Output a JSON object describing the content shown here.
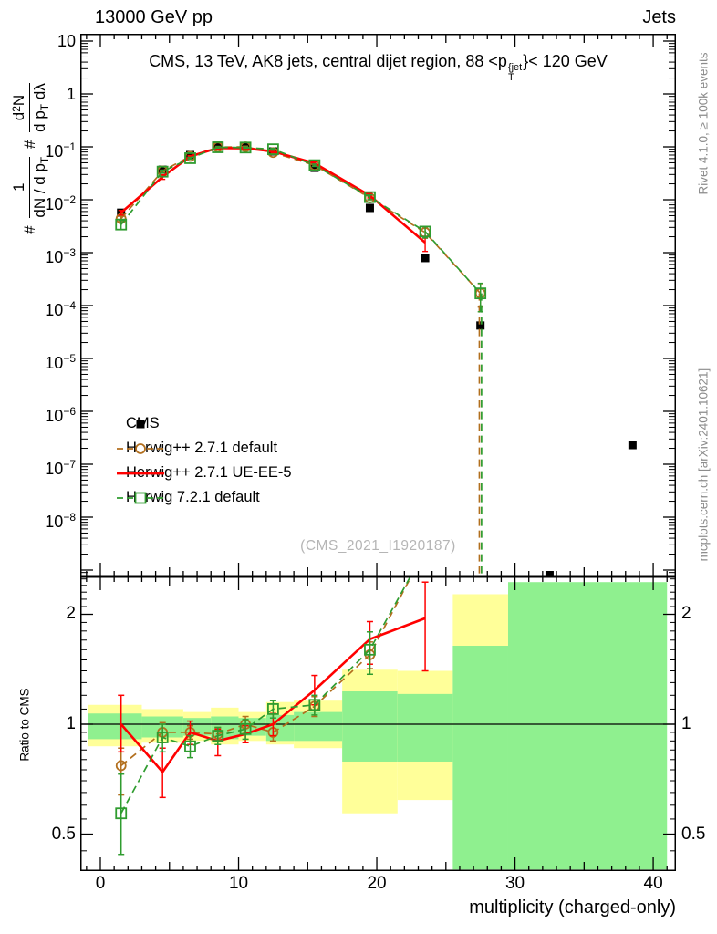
{
  "header": {
    "left": "13000 GeV pp",
    "right": "Jets"
  },
  "title_parts": [
    {
      "t": "CMS, 13 TeV, AK8 jets, central dijet region, 88 <p"
    },
    {
      "sup": "{jet",
      "sub": "T"
    },
    {
      "t": "}< 120 GeV"
    }
  ],
  "watermark": "(CMS_2021_I1920187)",
  "side_top": "Rivet 4.1.0, ≥ 100k events",
  "side_bottom": "mcplots.cern.ch [arXiv:2401.10621]",
  "ratio_ylabel": "Ratio to CMS",
  "ylabel_main": {
    "segments": [
      {
        "t": "# "
      },
      {
        "frac": {
          "num": [
            {
              "t": "1"
            }
          ],
          "den": [
            {
              "t": "dN / d p"
            },
            {
              "sub": "T"
            }
          ]
        }
      },
      {
        "t": " # "
      },
      {
        "frac": {
          "num": [
            {
              "t": "d"
            },
            {
              "sup": "2"
            },
            {
              "t": "N"
            }
          ],
          "den": [
            {
              "t": "d p"
            },
            {
              "sub": "T"
            },
            {
              "t": " dλ"
            }
          ]
        }
      }
    ]
  },
  "colors": {
    "cms": "#000000",
    "herwigpp_default": "#b26f1e",
    "herwigpp_ueee5": "#ff0000",
    "herwig7": "#2f9c2f",
    "band_yellow": "#ffff99",
    "band_green": "#8ff08f",
    "gray_text": "#8c8c8c"
  },
  "chart_data": {
    "type": "line",
    "title": "CMS, 13 TeV, AK8 jets, central dijet region, 88 < pT^jet < 120 GeV",
    "xlabel": "multiplicity (charged-only)",
    "ylabel": "# 1/(dN/dpT) # d2N/(dpT dLambda)",
    "ratio_ylabel": "Ratio to CMS",
    "xlim": [
      -1.45,
      41.65
    ],
    "ylim_main_log": [
      7.6e-10,
      13.7
    ],
    "ylim_ratio_log": [
      0.396,
      2.54
    ],
    "x_ticks": [
      0,
      10,
      20,
      30,
      40
    ],
    "y_ticks_main": [
      {
        "v": 10,
        "base": "10"
      },
      {
        "v": 1,
        "base": "1"
      },
      {
        "v": 0.1,
        "base": "10",
        "exp": "−1"
      },
      {
        "v": 0.01,
        "base": "10",
        "exp": "−2"
      },
      {
        "v": 0.001,
        "base": "10",
        "exp": "−3"
      },
      {
        "v": 0.0001,
        "base": "10",
        "exp": "−4"
      },
      {
        "v": 1e-05,
        "base": "10",
        "exp": "−5"
      },
      {
        "v": 1e-06,
        "base": "10",
        "exp": "−6"
      },
      {
        "v": 1e-07,
        "base": "10",
        "exp": "−7"
      },
      {
        "v": 1e-08,
        "base": "10",
        "exp": "−8"
      }
    ],
    "y_ticks_ratio": [
      {
        "v": 2,
        "t": "2"
      },
      {
        "v": 1,
        "t": "1"
      },
      {
        "v": 0.5,
        "t": "0.5"
      }
    ],
    "series": [
      {
        "name": "CMS",
        "role": "data",
        "color": "#000000",
        "line": "none",
        "marker": "filled-square",
        "x": [
          1.5,
          4.5,
          6.5,
          8.5,
          10.5,
          12.5,
          15.5,
          19.5,
          23.5,
          27.5,
          38.5
        ],
        "y": [
          0.0057,
          0.037,
          0.07,
          0.105,
          0.1,
          0.082,
          0.04,
          0.007,
          0.00079,
          4.2e-05,
          2.3e-07
        ],
        "clipped_points": [
          {
            "x": 32.5,
            "note": "below y-axis range, marker clipped at axis"
          }
        ]
      },
      {
        "name": "Herwig++ 2.7.1 default",
        "role": "mc",
        "color": "#b26f1e",
        "line": "dashed",
        "marker": "open-circle",
        "x": [
          1.5,
          4.5,
          6.5,
          8.5,
          10.5,
          12.5,
          15.5,
          19.5,
          23.5,
          27.5
        ],
        "y": [
          0.0044,
          0.035,
          0.066,
          0.099,
          0.1,
          0.078,
          0.045,
          0.0108,
          0.0024,
          0.00017
        ],
        "yerr_rel": [
          0.12,
          0.04,
          0.03,
          0.03,
          0.03,
          0.03,
          0.05,
          0.08,
          0.22,
          0.45
        ],
        "drop_to_zero_after": 27.5,
        "drop_offset": -1.2,
        "ratio": [
          0.77,
          0.95,
          0.95,
          0.94,
          1.0,
          0.95,
          1.12,
          1.55,
          3.0,
          4.0
        ],
        "ratio_lo": [
          0.64,
          0.89,
          0.91,
          0.9,
          0.95,
          0.9,
          1.05,
          1.42,
          null,
          null
        ],
        "ratio_hi": [
          0.86,
          1.01,
          0.99,
          0.98,
          1.05,
          1.0,
          1.19,
          1.68,
          null,
          null
        ]
      },
      {
        "name": "Herwig++ 2.7.1 UE-EE-5",
        "role": "mc",
        "color": "#ff0000",
        "line": "solid",
        "marker": "none",
        "x": [
          1.5,
          4.5,
          6.5,
          8.5,
          10.5,
          12.5,
          15.5,
          19.5,
          23.5
        ],
        "y": [
          0.0057,
          0.027,
          0.066,
          0.095,
          0.094,
          0.082,
          0.049,
          0.012,
          0.00155
        ],
        "yerr_rel": [
          0.1,
          0.1,
          0.04,
          0.04,
          0.04,
          0.05,
          0.06,
          0.1,
          0.32
        ],
        "ratio": [
          1.0,
          0.74,
          0.95,
          0.9,
          0.94,
          1.0,
          1.24,
          1.71,
          1.95
        ],
        "ratio_lo": [
          0.84,
          0.63,
          0.88,
          0.82,
          0.89,
          0.93,
          1.13,
          1.46,
          1.4
        ],
        "ratio_hi": [
          1.2,
          0.86,
          1.02,
          0.97,
          0.99,
          1.07,
          1.36,
          1.91,
          2.45
        ]
      },
      {
        "name": "Herwig 7.2.1 default",
        "role": "mc",
        "color": "#2f9c2f",
        "line": "dashed",
        "marker": "open-square",
        "x": [
          1.5,
          4.5,
          6.5,
          8.5,
          10.5,
          12.5,
          15.5,
          19.5,
          23.5,
          27.5
        ],
        "y": [
          0.0034,
          0.034,
          0.061,
          0.098,
          0.097,
          0.09,
          0.045,
          0.0112,
          0.0025,
          0.00017
        ],
        "yerr_rel": [
          0.2,
          0.06,
          0.04,
          0.03,
          0.03,
          0.04,
          0.05,
          0.1,
          0.24,
          0.55
        ],
        "drop_to_zero_after": 27.5,
        "drop_offset": 1.2,
        "ratio": [
          0.57,
          0.92,
          0.87,
          0.93,
          0.97,
          1.1,
          1.13,
          1.6,
          3.0,
          4.0
        ],
        "ratio_lo": [
          0.44,
          0.84,
          0.81,
          0.88,
          0.91,
          1.04,
          1.06,
          1.37,
          null,
          null
        ],
        "ratio_hi": [
          0.73,
          1.0,
          0.93,
          0.98,
          1.03,
          1.16,
          1.2,
          1.79,
          null,
          null
        ]
      }
    ],
    "ratio_reference": 1,
    "ratio_bands": [
      {
        "x0": -0.9,
        "x1": 3,
        "yellow": [
          0.87,
          1.13
        ],
        "green": [
          0.91,
          1.07
        ]
      },
      {
        "x0": 3,
        "x1": 6,
        "yellow": [
          0.89,
          1.1
        ],
        "green": [
          0.92,
          1.05
        ]
      },
      {
        "x0": 6,
        "x1": 8,
        "yellow": [
          0.9,
          1.08
        ],
        "green": [
          0.93,
          1.04
        ]
      },
      {
        "x0": 8,
        "x1": 10,
        "yellow": [
          0.88,
          1.11
        ],
        "green": [
          0.91,
          1.05
        ]
      },
      {
        "x0": 10,
        "x1": 12,
        "yellow": [
          0.9,
          1.08
        ],
        "green": [
          0.93,
          1.04
        ]
      },
      {
        "x0": 12,
        "x1": 14,
        "yellow": [
          0.88,
          1.15
        ],
        "green": [
          0.9,
          1.06
        ]
      },
      {
        "x0": 14,
        "x1": 17.5,
        "yellow": [
          0.86,
          1.16
        ],
        "green": [
          0.9,
          1.08
        ]
      },
      {
        "x0": 17.5,
        "x1": 21.5,
        "yellow": [
          0.57,
          1.41
        ],
        "green": [
          0.79,
          1.23
        ]
      },
      {
        "x0": 21.5,
        "x1": 25.5,
        "yellow": [
          0.62,
          1.4
        ],
        "green": [
          0.79,
          1.21
        ]
      },
      {
        "x0": 25.5,
        "x1": 29.5,
        "yellow": [
          1.64,
          2.27
        ],
        "green": [
          0.4,
          1.64
        ]
      },
      {
        "x0": 29.5,
        "x1": 41,
        "yellow": null,
        "green": [
          0.4,
          2.45
        ]
      }
    ]
  }
}
